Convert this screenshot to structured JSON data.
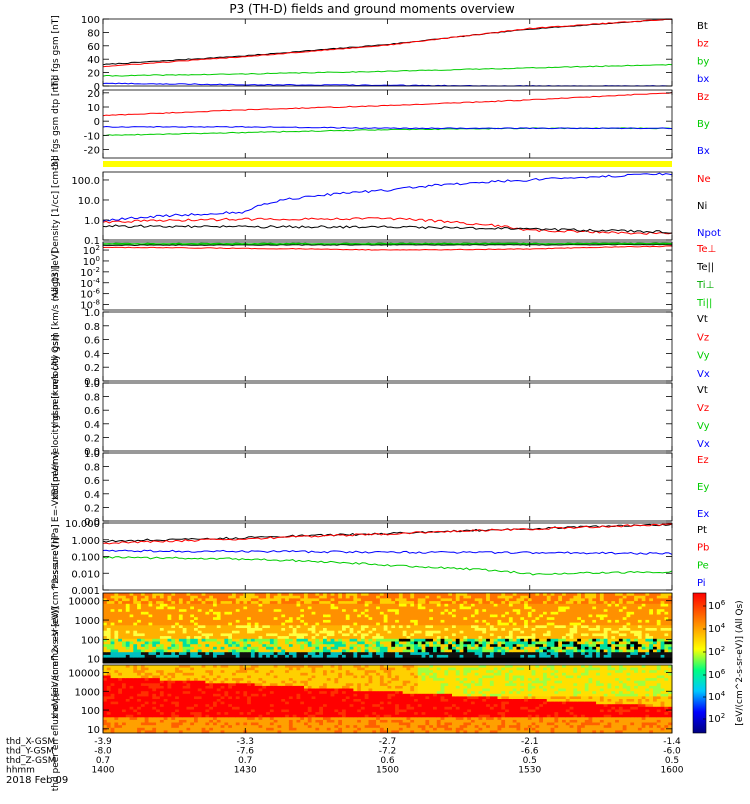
{
  "title": "P3 (TH-D) fields and ground moments overview",
  "date_label": "2018 Feb 09",
  "colorbar_label": "[eV/(cm^2-s-sr-eV)] (All Qs)",
  "colorbar_ticks": [
    "10^6",
    "10^4",
    "10^2"
  ],
  "x_axis": {
    "rows": [
      {
        "label": "thd_X-GSM",
        "values": [
          "-3.9",
          "-3.3",
          "-2.7",
          "-2.1",
          "-1.4"
        ]
      },
      {
        "label": "thd_Y-GSM",
        "values": [
          "-8.0",
          "-7.6",
          "-7.2",
          "-6.6",
          "-6.0"
        ]
      },
      {
        "label": "thd_Z-GSM",
        "values": [
          "0.7",
          "0.7",
          "0.6",
          "0.5",
          "0.5"
        ]
      },
      {
        "label": "hhmm",
        "values": [
          "1400",
          "1430",
          "1500",
          "1530",
          "1600"
        ]
      }
    ]
  },
  "chart_data": [
    {
      "type": "line",
      "ylabel": "thd fgs gsm [nT]",
      "yticks": [
        "100",
        "80",
        "60",
        "40",
        "20",
        "0"
      ],
      "ylim": [
        0,
        100
      ],
      "x": [
        "1400",
        "1430",
        "1500",
        "1530",
        "1600"
      ],
      "series": [
        {
          "name": "Bt",
          "color": "#000000",
          "values": [
            32,
            45,
            62,
            85,
            100
          ]
        },
        {
          "name": "bz",
          "color": "#ff0000",
          "values": [
            29,
            44,
            61,
            86,
            100
          ]
        },
        {
          "name": "by",
          "color": "#00cc00",
          "values": [
            15,
            18,
            22,
            27,
            32
          ]
        },
        {
          "name": "bx",
          "color": "#0000ff",
          "values": [
            4,
            2,
            1,
            0,
            0
          ]
        }
      ]
    },
    {
      "type": "line",
      "ylabel": "thd fgs gsm dtp [nT]",
      "yticks": [
        "20",
        "10",
        "0",
        "-10",
        "-20"
      ],
      "ylim": [
        -26,
        22
      ],
      "x": [
        "1400",
        "1430",
        "1500",
        "1530",
        "1600"
      ],
      "series": [
        {
          "name": "Bz",
          "color": "#ff0000",
          "values": [
            4,
            8,
            11,
            15,
            20
          ]
        },
        {
          "name": "By",
          "color": "#00cc00",
          "values": [
            -10,
            -8,
            -6,
            -5,
            -5
          ]
        },
        {
          "name": "Bx",
          "color": "#0000ff",
          "values": [
            -4,
            -4,
            -5,
            -5,
            -5
          ]
        }
      ]
    },
    {
      "type": "line",
      "ylabel": "Density [1/cc] [cm-3]",
      "yscale": "log",
      "yticks": [
        "100.0",
        "10.0",
        "1.0",
        "0.1"
      ],
      "ylim": [
        0.1,
        250
      ],
      "x": [
        "1400",
        "1430",
        "1500",
        "1530",
        "1600"
      ],
      "series": [
        {
          "name": "Ne",
          "color": "#ff0000",
          "values": [
            0.8,
            1.1,
            1.2,
            0.3,
            0.2
          ]
        },
        {
          "name": "Ni",
          "color": "#000000",
          "values": [
            0.5,
            0.45,
            0.45,
            0.35,
            0.25
          ]
        },
        {
          "name": "Npot",
          "color": "#0000ff",
          "values": [
            0.9,
            2.5,
            30,
            100,
            200
          ]
        }
      ]
    },
    {
      "type": "line",
      "ylabel": "magt3 [eV]",
      "yscale": "log",
      "yticks": [
        "10^2",
        "10^0",
        "10^-2",
        "10^-4",
        "10^-6",
        "10^-8"
      ],
      "ylim": [
        1e-09,
        3000
      ],
      "x": [
        "1400",
        "1430",
        "1500",
        "1530",
        "1600"
      ],
      "series": [
        {
          "name": "Te⊥",
          "color": "#ff0000",
          "values": [
            300,
            200,
            100,
            150,
            500
          ]
        },
        {
          "name": "Te||",
          "color": "#000000",
          "values": [
            800,
            800,
            900,
            900,
            1000
          ]
        },
        {
          "name": "Ti⊥",
          "color": "#00aa00",
          "values": [
            1200,
            1200,
            1300,
            1300,
            1400
          ]
        },
        {
          "name": "Ti||",
          "color": "#00cc00",
          "values": [
            1500,
            1500,
            1600,
            1600,
            1700
          ]
        }
      ]
    },
    {
      "type": "line",
      "ylabel": "thd peir velocity gsm [km/s (All Qs)]",
      "yticks": [
        "1.0",
        "0.8",
        "0.6",
        "0.4",
        "0.2",
        "0.0"
      ],
      "ylim": [
        0,
        1
      ],
      "legend": [
        "Vt",
        "Vz",
        "Vy",
        "Vx"
      ],
      "series": []
    },
    {
      "type": "line",
      "ylabel": "thd peer velocity gsm [km/s (All Qs)]",
      "yticks": [
        "1.0",
        "0.8",
        "0.6",
        "0.4",
        "0.2",
        "0.0"
      ],
      "ylim": [
        0,
        1
      ],
      "legend": [
        "Vt",
        "Vz",
        "Vy",
        "Vx"
      ],
      "series": []
    },
    {
      "type": "line",
      "ylabel": "E=-VxB [mV/m]",
      "yticks": [
        "1.0",
        "0.8",
        "0.6",
        "0.4",
        "0.2",
        "0.0"
      ],
      "ylim": [
        0,
        1
      ],
      "legend": [
        "Ez",
        "Ey",
        "Ex"
      ],
      "series": []
    },
    {
      "type": "line",
      "ylabel": "Pressure [nPa]",
      "yscale": "log",
      "yticks": [
        "10.000",
        "1.000",
        "0.100",
        "0.010",
        "0.001"
      ],
      "ylim": [
        0.001,
        10
      ],
      "x": [
        "1400",
        "1430",
        "1500",
        "1530",
        "1600"
      ],
      "series": [
        {
          "name": "Pt",
          "color": "#000000",
          "values": [
            0.8,
            1.3,
            2.3,
            4.5,
            8
          ]
        },
        {
          "name": "Pb",
          "color": "#ff0000",
          "values": [
            0.6,
            1.1,
            2.2,
            4.3,
            8
          ]
        },
        {
          "name": "Pe",
          "color": "#00cc00",
          "values": [
            0.09,
            0.07,
            0.03,
            0.009,
            0.012
          ]
        },
        {
          "name": "Pi",
          "color": "#0000ff",
          "values": [
            0.22,
            0.2,
            0.18,
            0.17,
            0.15
          ]
        }
      ]
    },
    {
      "type": "heatmap",
      "ylabel": "thd peir en eflux eV [eV/(cm^2-s-sr-eV)]",
      "yscale": "log",
      "yticks": [
        "10000",
        "1000",
        "100",
        "10"
      ],
      "ylim": [
        6,
        25000
      ]
    },
    {
      "type": "heatmap",
      "ylabel": "thd peer en eflux eV [eV/(cm^2-s-sr-eV)]",
      "yscale": "log",
      "yticks": [
        "10000",
        "1000",
        "100",
        "10"
      ],
      "ylim": [
        6,
        25000
      ]
    }
  ]
}
